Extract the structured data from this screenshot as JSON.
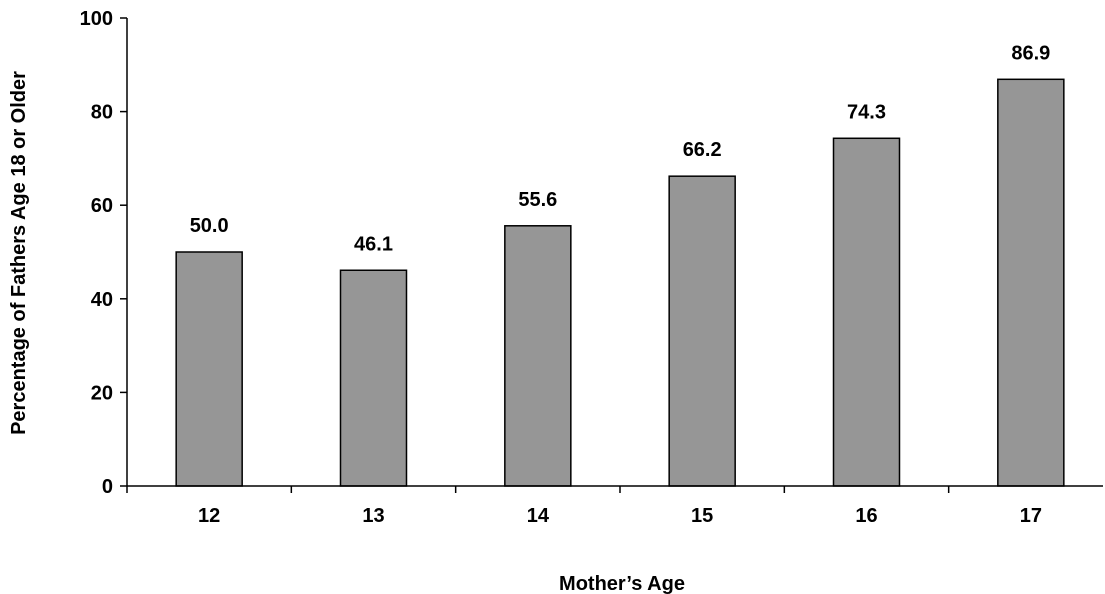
{
  "chart_data": {
    "type": "bar",
    "categories": [
      "12",
      "13",
      "14",
      "15",
      "16",
      "17"
    ],
    "values": [
      50.0,
      46.1,
      55.6,
      66.2,
      74.3,
      86.9
    ],
    "data_labels": [
      "50.0",
      "46.1",
      "55.6",
      "66.2",
      "74.3",
      "86.9"
    ],
    "title": "",
    "xlabel": "Mother’s Age",
    "ylabel": "Percentage of Fathers Age 18 or Older",
    "ylim": [
      0,
      100
    ],
    "yticks": [
      0,
      20,
      40,
      60,
      80,
      100
    ],
    "ytick_labels": [
      "0",
      "20",
      "40",
      "60",
      "80",
      "100"
    ],
    "grid": false,
    "legend": "none",
    "colors": {
      "bar_fill": "#969696",
      "bar_stroke": "#000000",
      "axis": "#000000"
    }
  }
}
